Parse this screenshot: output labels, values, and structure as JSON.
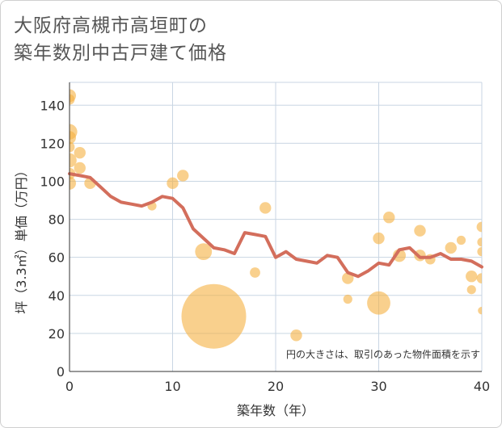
{
  "page": {
    "title_line1": "大阪府高槻市高垣町の",
    "title_line2": "築年数別中古戸建て価格"
  },
  "chart_data": {
    "type": "scatter",
    "title": "大阪府高槻市高垣町の築年数別中古戸建て価格",
    "xlabel": "築年数（年）",
    "ylabel": "坪（3.3㎡）単価（万円）",
    "xlim": [
      0,
      40
    ],
    "ylim": [
      0,
      152
    ],
    "xticks": [
      0,
      10,
      20,
      30,
      40
    ],
    "yticks": [
      0,
      20,
      40,
      60,
      80,
      100,
      120,
      140
    ],
    "grid": true,
    "note": "円の大きさは、取引のあった物件面積を示す",
    "colors": {
      "bubble": "#F5B041",
      "trend": "#D36E5C",
      "grid": "#C9D6E3"
    },
    "bubbles": [
      {
        "x": 0,
        "y": 145,
        "s": 1.0
      },
      {
        "x": 0,
        "y": 143,
        "s": 0.8
      },
      {
        "x": 0,
        "y": 126,
        "s": 1.2
      },
      {
        "x": 0,
        "y": 123,
        "s": 1.0
      },
      {
        "x": 0,
        "y": 118,
        "s": 0.8
      },
      {
        "x": 0,
        "y": 111,
        "s": 1.1
      },
      {
        "x": 0,
        "y": 104,
        "s": 0.9
      },
      {
        "x": 0,
        "y": 99,
        "s": 1.0
      },
      {
        "x": 1,
        "y": 115,
        "s": 0.9
      },
      {
        "x": 1,
        "y": 107,
        "s": 0.9
      },
      {
        "x": 2,
        "y": 99,
        "s": 0.9
      },
      {
        "x": 8,
        "y": 87,
        "s": 0.7
      },
      {
        "x": 10,
        "y": 99,
        "s": 0.9
      },
      {
        "x": 11,
        "y": 103,
        "s": 0.9
      },
      {
        "x": 13,
        "y": 63,
        "s": 1.3
      },
      {
        "x": 14,
        "y": 29,
        "s": 5.0
      },
      {
        "x": 18,
        "y": 52,
        "s": 0.8
      },
      {
        "x": 19,
        "y": 86,
        "s": 0.9
      },
      {
        "x": 22,
        "y": 19,
        "s": 0.9
      },
      {
        "x": 27,
        "y": 49,
        "s": 0.9
      },
      {
        "x": 27,
        "y": 38,
        "s": 0.7
      },
      {
        "x": 30,
        "y": 70,
        "s": 0.9
      },
      {
        "x": 30,
        "y": 36,
        "s": 1.8
      },
      {
        "x": 31,
        "y": 81,
        "s": 0.9
      },
      {
        "x": 32,
        "y": 61,
        "s": 1.0
      },
      {
        "x": 34,
        "y": 74,
        "s": 0.9
      },
      {
        "x": 34,
        "y": 61,
        "s": 0.9
      },
      {
        "x": 35,
        "y": 59,
        "s": 0.8
      },
      {
        "x": 37,
        "y": 65,
        "s": 0.9
      },
      {
        "x": 38,
        "y": 69,
        "s": 0.7
      },
      {
        "x": 39,
        "y": 50,
        "s": 0.9
      },
      {
        "x": 39,
        "y": 43,
        "s": 0.7
      },
      {
        "x": 40,
        "y": 76,
        "s": 0.8
      },
      {
        "x": 40,
        "y": 68,
        "s": 0.7
      },
      {
        "x": 40,
        "y": 63,
        "s": 0.7
      },
      {
        "x": 40,
        "y": 49,
        "s": 0.8
      },
      {
        "x": 40,
        "y": 32,
        "s": 0.6
      }
    ],
    "trend": {
      "x": [
        0,
        1,
        2,
        3,
        4,
        5,
        6,
        7,
        8,
        9,
        10,
        11,
        12,
        13,
        14,
        15,
        16,
        17,
        18,
        19,
        20,
        21,
        22,
        23,
        24,
        25,
        26,
        27,
        28,
        29,
        30,
        31,
        32,
        33,
        34,
        35,
        36,
        37,
        38,
        39,
        40
      ],
      "y": [
        104,
        103,
        102,
        97,
        92,
        89,
        88,
        87,
        89,
        92,
        91,
        86,
        75,
        70,
        65,
        64,
        62,
        73,
        72,
        71,
        60,
        63,
        59,
        58,
        57,
        61,
        60,
        52,
        50,
        53,
        57,
        56,
        64,
        65,
        60,
        60,
        62,
        59,
        59,
        58,
        55
      ]
    }
  }
}
